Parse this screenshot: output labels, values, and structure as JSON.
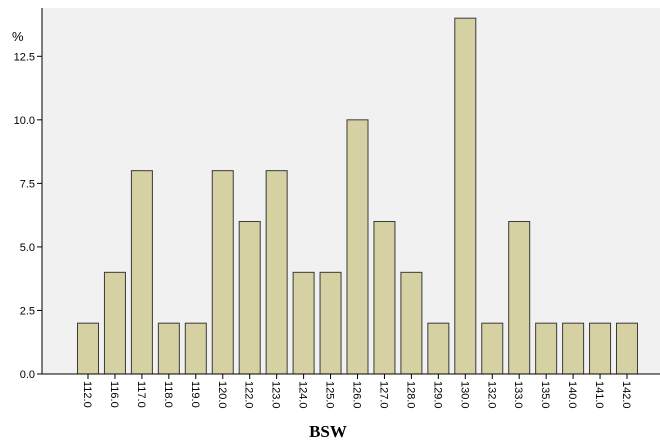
{
  "chart_data": {
    "type": "bar",
    "title": "",
    "xlabel": "BSW",
    "ylabel": "%",
    "categories": [
      "112.0",
      "116.0",
      "117.0",
      "118.0",
      "119.0",
      "120.0",
      "122.0",
      "123.0",
      "124.0",
      "125.0",
      "126.0",
      "127.0",
      "128.0",
      "129.0",
      "130.0",
      "132.0",
      "133.0",
      "135.0",
      "140.0",
      "141.0",
      "142.0"
    ],
    "values": [
      2,
      4,
      8,
      2,
      2,
      8,
      6,
      8,
      4,
      4,
      10,
      6,
      4,
      2,
      14,
      2,
      6,
      2,
      2,
      2,
      2
    ],
    "y_ticks": [
      "0.0",
      "2.5",
      "5.0",
      "7.5",
      "10.0",
      "12.5"
    ],
    "ylim": [
      0,
      14.4
    ],
    "grid": false,
    "colors": {
      "bar_fill": "#d6d1a2",
      "bar_stroke": "#3a3a3a",
      "plot_background": "#f1f1f1",
      "axis": "#000000"
    }
  }
}
